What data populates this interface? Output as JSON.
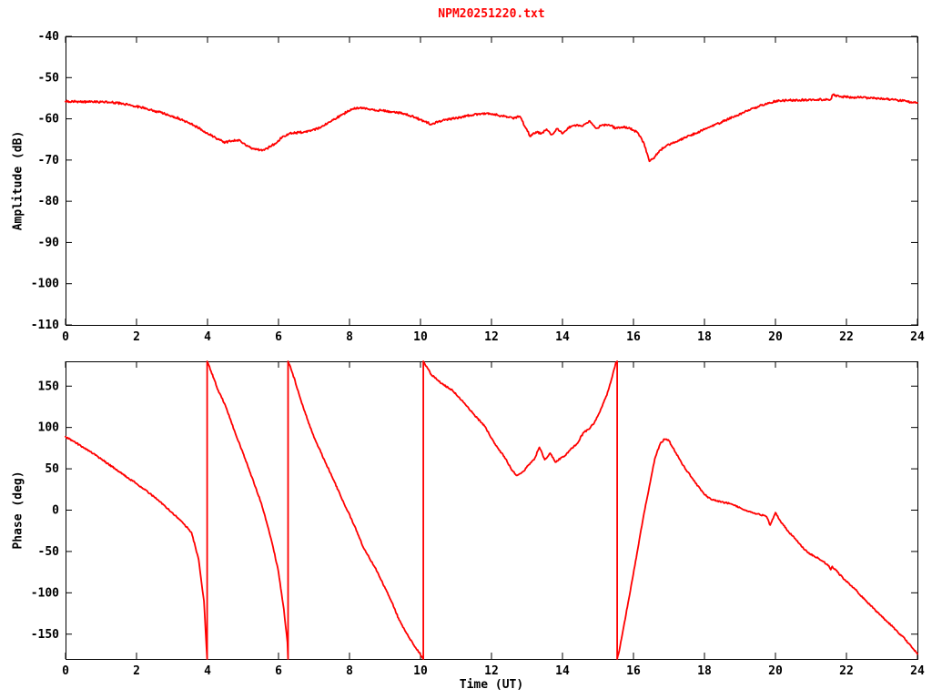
{
  "colors": {
    "series": "#ff0000",
    "axis": "#000000",
    "background": "#ffffff",
    "title": "#ff0000"
  },
  "chart_data": [
    {
      "id": "amplitude-panel",
      "type": "line",
      "title": "NPM20251220.txt",
      "xlabel": "",
      "ylabel": "Amplitude (dB)",
      "xlim": [
        0,
        24
      ],
      "ylim": [
        -110,
        -40
      ],
      "xticks": [
        0,
        2,
        4,
        6,
        8,
        10,
        12,
        14,
        16,
        18,
        20,
        22,
        24
      ],
      "yticks": [
        -110,
        -100,
        -90,
        -80,
        -70,
        -60,
        -50,
        -40
      ],
      "grid": false,
      "legend": "none",
      "series": [
        {
          "name": "amplitude",
          "color": "#ff0000",
          "jitter": 0.25,
          "points": [
            [
              0,
              -55.8
            ],
            [
              0.3,
              -55.8
            ],
            [
              0.7,
              -55.9
            ],
            [
              1,
              -55.9
            ],
            [
              1.3,
              -56
            ],
            [
              1.6,
              -56.3
            ],
            [
              2,
              -57
            ],
            [
              2.4,
              -57.8
            ],
            [
              2.8,
              -58.8
            ],
            [
              3.2,
              -59.9
            ],
            [
              3.6,
              -61.5
            ],
            [
              4,
              -63.5
            ],
            [
              4.3,
              -65
            ],
            [
              4.5,
              -65.7
            ],
            [
              4.7,
              -65.3
            ],
            [
              4.9,
              -65.1
            ],
            [
              5.1,
              -66.6
            ],
            [
              5.3,
              -67.3
            ],
            [
              5.6,
              -67.6
            ],
            [
              5.9,
              -66
            ],
            [
              6.1,
              -64.5
            ],
            [
              6.3,
              -63.6
            ],
            [
              6.6,
              -63.3
            ],
            [
              6.9,
              -63
            ],
            [
              7.2,
              -62
            ],
            [
              7.5,
              -60.5
            ],
            [
              7.8,
              -58.9
            ],
            [
              8.1,
              -57.6
            ],
            [
              8.3,
              -57.3
            ],
            [
              8.6,
              -57.7
            ],
            [
              8.9,
              -58
            ],
            [
              9.2,
              -58.3
            ],
            [
              9.5,
              -58.7
            ],
            [
              9.8,
              -59.5
            ],
            [
              10.1,
              -60.6
            ],
            [
              10.3,
              -61.3
            ],
            [
              10.5,
              -60.7
            ],
            [
              10.8,
              -60.1
            ],
            [
              11.1,
              -59.7
            ],
            [
              11.4,
              -59.1
            ],
            [
              11.7,
              -58.8
            ],
            [
              12,
              -58.8
            ],
            [
              12.3,
              -59.3
            ],
            [
              12.6,
              -59.9
            ],
            [
              12.8,
              -59.4
            ],
            [
              12.95,
              -62
            ],
            [
              13.1,
              -64.3
            ],
            [
              13.25,
              -63.2
            ],
            [
              13.4,
              -63.6
            ],
            [
              13.55,
              -62.5
            ],
            [
              13.7,
              -63.8
            ],
            [
              13.85,
              -62.4
            ],
            [
              14,
              -63.6
            ],
            [
              14.15,
              -62.2
            ],
            [
              14.35,
              -61.5
            ],
            [
              14.55,
              -61.8
            ],
            [
              14.75,
              -60.5
            ],
            [
              14.95,
              -62.3
            ],
            [
              15.1,
              -61.6
            ],
            [
              15.3,
              -61.4
            ],
            [
              15.5,
              -62.3
            ],
            [
              15.7,
              -62
            ],
            [
              15.9,
              -62.3
            ],
            [
              16.1,
              -63.2
            ],
            [
              16.3,
              -66
            ],
            [
              16.45,
              -70.3
            ],
            [
              16.6,
              -69.2
            ],
            [
              16.75,
              -67.6
            ],
            [
              17,
              -66.2
            ],
            [
              17.3,
              -65.1
            ],
            [
              17.6,
              -64
            ],
            [
              18,
              -62.6
            ],
            [
              18.4,
              -61.1
            ],
            [
              18.8,
              -59.6
            ],
            [
              19.2,
              -58.1
            ],
            [
              19.6,
              -56.7
            ],
            [
              20,
              -55.7
            ],
            [
              20.4,
              -55.5
            ],
            [
              20.8,
              -55.4
            ],
            [
              21.2,
              -55.3
            ],
            [
              21.55,
              -55.3
            ],
            [
              21.62,
              -54.1
            ],
            [
              21.8,
              -54.6
            ],
            [
              22.2,
              -54.8
            ],
            [
              22.6,
              -54.9
            ],
            [
              23,
              -55.1
            ],
            [
              23.4,
              -55.4
            ],
            [
              23.7,
              -55.8
            ],
            [
              24,
              -56.1
            ]
          ]
        }
      ]
    },
    {
      "id": "phase-panel",
      "type": "line",
      "title": "",
      "xlabel": "Time (UT)",
      "ylabel": "Phase (deg)",
      "xlim": [
        0,
        24
      ],
      "ylim": [
        -180,
        180
      ],
      "xticks": [
        0,
        2,
        4,
        6,
        8,
        10,
        12,
        14,
        16,
        18,
        20,
        22,
        24
      ],
      "yticks": [
        -150,
        -100,
        -50,
        0,
        50,
        100,
        150
      ],
      "grid": false,
      "legend": "none",
      "series": [
        {
          "name": "phase",
          "color": "#ff0000",
          "jitter": 0.9,
          "points": [
            [
              0,
              89
            ],
            [
              0.5,
              76
            ],
            [
              1,
              62
            ],
            [
              1.5,
              47
            ],
            [
              2,
              32
            ],
            [
              2.5,
              16
            ],
            [
              3,
              -3
            ],
            [
              3.3,
              -15
            ],
            [
              3.55,
              -27
            ],
            [
              3.75,
              -60
            ],
            [
              3.9,
              -110
            ],
            [
              3.97,
              -165
            ],
            [
              3.99,
              -180
            ],
            [
              3.99,
              180
            ],
            [
              4.1,
              168
            ],
            [
              4.3,
              145
            ],
            [
              4.5,
              127
            ],
            [
              4.75,
              97
            ],
            [
              5,
              69
            ],
            [
              5.25,
              40
            ],
            [
              5.5,
              10
            ],
            [
              5.7,
              -20
            ],
            [
              5.85,
              -45
            ],
            [
              6,
              -75
            ],
            [
              6.15,
              -120
            ],
            [
              6.25,
              -160
            ],
            [
              6.27,
              -180
            ],
            [
              6.27,
              180
            ],
            [
              6.4,
              165
            ],
            [
              6.7,
              124
            ],
            [
              7,
              88
            ],
            [
              7.3,
              60
            ],
            [
              7.56,
              36
            ],
            [
              7.8,
              12
            ],
            [
              8.07,
              -12
            ],
            [
              8.4,
              -46
            ],
            [
              8.7,
              -68
            ],
            [
              8.9,
              -85
            ],
            [
              9.2,
              -112
            ],
            [
              9.4,
              -133
            ],
            [
              9.65,
              -152
            ],
            [
              9.86,
              -166
            ],
            [
              10.05,
              -178
            ],
            [
              10.08,
              -180
            ],
            [
              10.08,
              180
            ],
            [
              10.3,
              164
            ],
            [
              10.6,
              153
            ],
            [
              10.9,
              145
            ],
            [
              11.2,
              131
            ],
            [
              11.5,
              116
            ],
            [
              11.8,
              102
            ],
            [
              12.1,
              80
            ],
            [
              12.4,
              62
            ],
            [
              12.55,
              50
            ],
            [
              12.7,
              42
            ],
            [
              12.8,
              44
            ],
            [
              12.9,
              47
            ],
            [
              13.05,
              55
            ],
            [
              13.2,
              61
            ],
            [
              13.35,
              76
            ],
            [
              13.5,
              61
            ],
            [
              13.65,
              69
            ],
            [
              13.8,
              58
            ],
            [
              13.95,
              63
            ],
            [
              14.05,
              65
            ],
            [
              14.2,
              72
            ],
            [
              14.4,
              80
            ],
            [
              14.6,
              94
            ],
            [
              14.75,
              98
            ],
            [
              14.9,
              106
            ],
            [
              15.1,
              124
            ],
            [
              15.25,
              139
            ],
            [
              15.4,
              161
            ],
            [
              15.5,
              178
            ],
            [
              15.54,
              180
            ],
            [
              15.54,
              -180
            ],
            [
              15.6,
              -170
            ],
            [
              15.85,
              -112
            ],
            [
              16.1,
              -52
            ],
            [
              16.28,
              -8
            ],
            [
              16.45,
              29
            ],
            [
              16.6,
              62
            ],
            [
              16.75,
              80
            ],
            [
              16.87,
              86
            ],
            [
              17,
              84
            ],
            [
              17.2,
              69
            ],
            [
              17.4,
              54
            ],
            [
              17.65,
              39
            ],
            [
              17.9,
              24
            ],
            [
              18.1,
              15
            ],
            [
              18.35,
              11
            ],
            [
              18.7,
              8
            ],
            [
              19,
              3
            ],
            [
              19.35,
              -3
            ],
            [
              19.55,
              -5
            ],
            [
              19.75,
              -8
            ],
            [
              19.85,
              -18
            ],
            [
              20,
              -3
            ],
            [
              20.15,
              -14
            ],
            [
              20.35,
              -25
            ],
            [
              20.6,
              -37
            ],
            [
              20.9,
              -51
            ],
            [
              21.2,
              -58
            ],
            [
              21.5,
              -67
            ],
            [
              21.56,
              -72
            ],
            [
              21.6,
              -68
            ],
            [
              21.9,
              -82
            ],
            [
              22.25,
              -96
            ],
            [
              22.6,
              -112
            ],
            [
              23,
              -129
            ],
            [
              23.3,
              -141
            ],
            [
              23.65,
              -156
            ],
            [
              24,
              -174
            ]
          ]
        }
      ]
    }
  ]
}
